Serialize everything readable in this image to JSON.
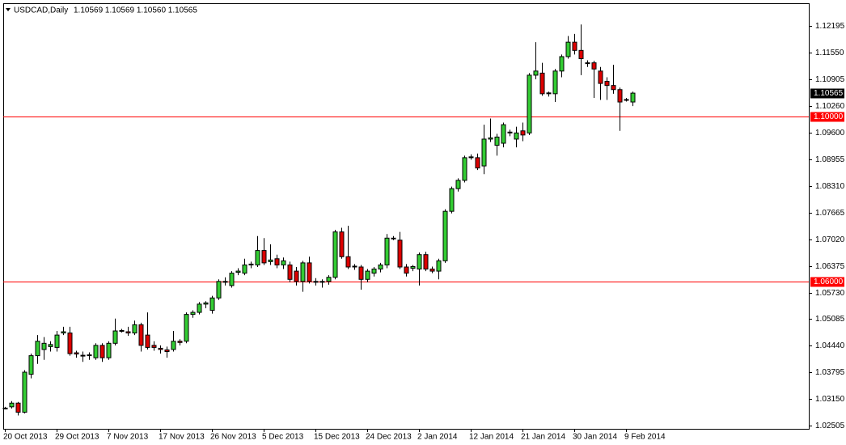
{
  "chart_data": {
    "type": "candlestick",
    "title": "USDCAD,Daily",
    "quote": "1.10569 1.10569 1.10560 1.10565",
    "bull_color": "#33cc33",
    "bear_color": "#dd0000",
    "categories": [
      "20 Oct 2013",
      null,
      null,
      null,
      null,
      null,
      null,
      null,
      "29 Oct 2013",
      null,
      null,
      null,
      null,
      null,
      null,
      null,
      "7 Nov 2013",
      null,
      null,
      null,
      null,
      null,
      null,
      null,
      "17 Nov 2013",
      null,
      null,
      null,
      null,
      null,
      null,
      null,
      "26 Nov 2013",
      null,
      null,
      null,
      null,
      null,
      null,
      null,
      "5 Dec 2013",
      null,
      null,
      null,
      null,
      null,
      null,
      null,
      "15 Dec 2013",
      null,
      null,
      null,
      null,
      null,
      null,
      null,
      "24 Dec 2013",
      null,
      null,
      null,
      null,
      null,
      null,
      null,
      "2 Jan 2014",
      null,
      null,
      null,
      null,
      null,
      null,
      null,
      "12 Jan 2014",
      null,
      null,
      null,
      null,
      null,
      null,
      null,
      "21 Jan 2014",
      null,
      null,
      null,
      null,
      null,
      null,
      null,
      "30 Jan 2014",
      null,
      null,
      null,
      null,
      null,
      null,
      null,
      "9 Feb 2014",
      null
    ],
    "open": [
      1.0293,
      1.0296,
      1.0305,
      1.0283,
      1.0375,
      1.042,
      1.0435,
      1.0442,
      1.044,
      1.0475,
      1.0475,
      1.0427,
      1.0421,
      1.042,
      1.0415,
      1.0445,
      1.0415,
      1.045,
      1.048,
      1.0478,
      1.0475,
      1.0495,
      1.047,
      1.0445,
      1.0438,
      1.0434,
      1.0435,
      1.0455,
      1.0455,
      1.052,
      1.0525,
      1.0545,
      1.053,
      1.056,
      1.06,
      1.059,
      1.0622,
      1.062,
      1.064,
      1.064,
      1.0675,
      1.0648,
      1.0655,
      1.064,
      1.064,
      1.0625,
      1.06,
      1.0645,
      1.06,
      1.0598,
      1.06,
      1.061,
      1.072,
      1.066,
      1.0635,
      1.0635,
      1.0605,
      1.062,
      1.063,
      1.064,
      1.0705,
      1.07,
      1.0635,
      1.0632,
      1.063,
      1.0665,
      1.063,
      1.0625,
      1.065,
      1.077,
      1.0825,
      1.0845,
      1.09,
      1.09,
      1.088,
      1.0945,
      1.093,
      1.0935,
      1.096,
      1.0945,
      1.0965,
      1.096,
      1.11,
      1.1105,
      1.1055,
      1.1055,
      1.111,
      1.1145,
      1.118,
      1.116,
      1.113,
      1.113,
      1.111,
      1.1085,
      1.1075,
      1.1065,
      1.104,
      1.1035
    ],
    "high": [
      1.0296,
      1.031,
      1.0308,
      1.0385,
      1.0425,
      1.047,
      1.0465,
      1.0455,
      1.048,
      1.049,
      1.049,
      1.0432,
      1.043,
      1.0428,
      1.045,
      1.045,
      1.0455,
      1.051,
      1.0485,
      1.049,
      1.0505,
      1.05,
      1.0525,
      1.0455,
      1.0445,
      1.0442,
      1.048,
      1.046,
      1.0525,
      1.053,
      1.055,
      1.0552,
      1.0565,
      1.0605,
      1.061,
      1.0625,
      1.0632,
      1.0655,
      1.0648,
      1.071,
      1.0705,
      1.069,
      1.0665,
      1.0658,
      1.0648,
      1.0635,
      1.065,
      1.066,
      1.0608,
      1.0605,
      1.0615,
      1.0725,
      1.073,
      1.0735,
      1.0642,
      1.064,
      1.063,
      1.0635,
      1.0645,
      1.0715,
      1.071,
      1.072,
      1.0642,
      1.064,
      1.067,
      1.0672,
      1.0636,
      1.0655,
      1.0775,
      1.083,
      1.085,
      1.0905,
      1.0908,
      1.091,
      1.098,
      1.0995,
      1.0958,
      1.0985,
      1.0968,
      1.0975,
      1.0985,
      1.1105,
      1.118,
      1.113,
      1.106,
      1.1115,
      1.115,
      1.1195,
      1.12,
      1.1223,
      1.1136,
      1.1135,
      1.112,
      1.1095,
      1.1125,
      1.107,
      1.1045,
      1.106
    ],
    "low": [
      1.029,
      1.0292,
      1.0275,
      1.028,
      1.0365,
      1.04,
      1.041,
      1.043,
      1.043,
      1.047,
      1.042,
      1.0415,
      1.0405,
      1.041,
      1.041,
      1.0405,
      1.041,
      1.0445,
      1.0476,
      1.0468,
      1.047,
      1.043,
      1.0435,
      1.0432,
      1.0425,
      1.0415,
      1.043,
      1.0445,
      1.045,
      1.0512,
      1.052,
      1.0535,
      1.0522,
      1.0555,
      1.059,
      1.0585,
      1.0615,
      1.0615,
      1.0632,
      1.0635,
      1.064,
      1.064,
      1.0632,
      1.063,
      1.0598,
      1.059,
      1.0575,
      1.0595,
      1.059,
      1.0585,
      1.0592,
      1.0605,
      1.0655,
      1.063,
      1.0628,
      1.058,
      1.0598,
      1.0612,
      1.0622,
      1.0632,
      1.07,
      1.063,
      1.0612,
      1.0625,
      1.059,
      1.0625,
      1.062,
      1.0605,
      1.0645,
      1.0765,
      1.0818,
      1.084,
      1.0895,
      1.087,
      1.086,
      1.0938,
      1.0905,
      1.0925,
      1.0952,
      1.0925,
      1.094,
      1.0955,
      1.109,
      1.105,
      1.1048,
      1.1035,
      1.1095,
      1.114,
      1.115,
      1.11,
      1.112,
      1.1045,
      1.104,
      1.104,
      1.1055,
      1.0965,
      1.1036,
      1.1025
    ],
    "close": [
      1.0292,
      1.0305,
      1.0283,
      1.038,
      1.042,
      1.0455,
      1.045,
      1.0447,
      1.047,
      1.0478,
      1.0425,
      1.0424,
      1.0419,
      1.0422,
      1.0445,
      1.0415,
      1.045,
      1.048,
      1.0481,
      1.0475,
      1.0495,
      1.0445,
      1.044,
      1.044,
      1.0435,
      1.043,
      1.0455,
      1.0452,
      1.052,
      1.0525,
      1.0545,
      1.0548,
      1.056,
      1.06,
      1.0598,
      1.062,
      1.0625,
      1.064,
      1.0642,
      1.0675,
      1.0645,
      1.0652,
      1.064,
      1.065,
      1.0605,
      1.06,
      1.0645,
      1.06,
      1.0598,
      1.06,
      1.061,
      1.072,
      1.066,
      1.0635,
      1.0637,
      1.0605,
      1.0625,
      1.063,
      1.064,
      1.0705,
      1.0704,
      1.0635,
      1.062,
      1.0636,
      1.0665,
      1.063,
      1.0625,
      1.065,
      1.077,
      1.0825,
      1.0845,
      1.09,
      1.0902,
      1.0875,
      1.0945,
      1.0948,
      1.095,
      1.098,
      1.0962,
      1.096,
      1.0955,
      1.11,
      1.111,
      1.1055,
      1.1057,
      1.111,
      1.1145,
      1.118,
      1.116,
      1.114,
      1.1128,
      1.1115,
      1.108,
      1.1075,
      1.1065,
      1.1035,
      1.1041,
      1.10565
    ],
    "ylim": [
      1.02427,
      1.12744
    ],
    "yticks": [
      1.12195,
      {
        "value": 1.1155,
        "label": "1.11550"
      },
      1.10905,
      {
        "value": 1.1026,
        "label": "1.10260"
      },
      {
        "value": 1.096,
        "label": "1.09600"
      },
      1.08955,
      {
        "value": 1.0831,
        "label": "1.08310"
      },
      1.07665,
      {
        "value": 1.0702,
        "label": "1.07020"
      },
      1.06375,
      {
        "value": 1.0573,
        "label": "1.05730"
      },
      1.05085,
      {
        "value": 1.0444,
        "label": "1.04440"
      },
      1.03795,
      {
        "value": 1.0315,
        "label": "1.03150"
      },
      1.02505
    ],
    "hlines": [
      {
        "value": 1.1,
        "label": "1.10000",
        "color": "#ff0000"
      },
      {
        "value": 1.06,
        "label": "1.06000",
        "color": "#ff0000"
      }
    ],
    "last_price": {
      "value": 1.10565,
      "label": "1.10565"
    }
  }
}
